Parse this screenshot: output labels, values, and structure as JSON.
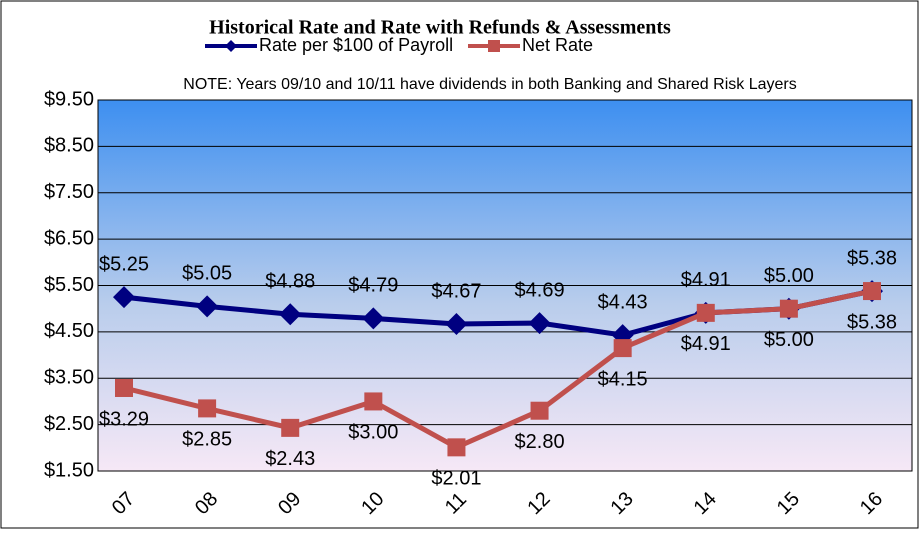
{
  "chart_data": {
    "type": "line",
    "title": "Historical Rate and Rate with Refunds & Assessments",
    "annotation": "NOTE: Years 09/10 and 10/11 have dividends in both Banking and Shared Risk Layers",
    "categories": [
      "07",
      "08",
      "09",
      "10",
      "11",
      "12",
      "13",
      "14",
      "15",
      "16"
    ],
    "series": [
      {
        "name": "Rate per $100 of Payroll",
        "color": "#000080",
        "marker": "diamond",
        "values": [
          5.25,
          5.05,
          4.88,
          4.79,
          4.67,
          4.69,
          4.43,
          4.91,
          5.0,
          5.38
        ],
        "value_labels": [
          "$5.25",
          "$5.05",
          "$4.88",
          "$4.79",
          "$4.67",
          "$4.69",
          "$4.43",
          "$4.91",
          "$5.00",
          "$5.38"
        ]
      },
      {
        "name": "Net Rate",
        "color": "#c0504d",
        "marker": "square",
        "values": [
          3.29,
          2.85,
          2.43,
          3.0,
          2.01,
          2.8,
          4.15,
          4.91,
          5.0,
          5.38
        ],
        "value_labels": [
          "$3.29",
          "$2.85",
          "$2.43",
          "$3.00",
          "$2.01",
          "$2.80",
          "$4.15",
          "$4.91",
          "$5.00",
          "$5.38"
        ]
      }
    ],
    "ylim": [
      1.5,
      9.5
    ],
    "yticks": [
      {
        "value": 1.5,
        "label": "$1.50"
      },
      {
        "value": 2.5,
        "label": "$2.50"
      },
      {
        "value": 3.5,
        "label": "$3.50"
      },
      {
        "value": 4.5,
        "label": "$4.50"
      },
      {
        "value": 5.5,
        "label": "$5.50"
      },
      {
        "value": 6.5,
        "label": "$6.50"
      },
      {
        "value": 7.5,
        "label": "$7.50"
      },
      {
        "value": 8.5,
        "label": "$8.50"
      },
      {
        "value": 9.5,
        "label": "$9.50"
      }
    ],
    "grid": true
  }
}
